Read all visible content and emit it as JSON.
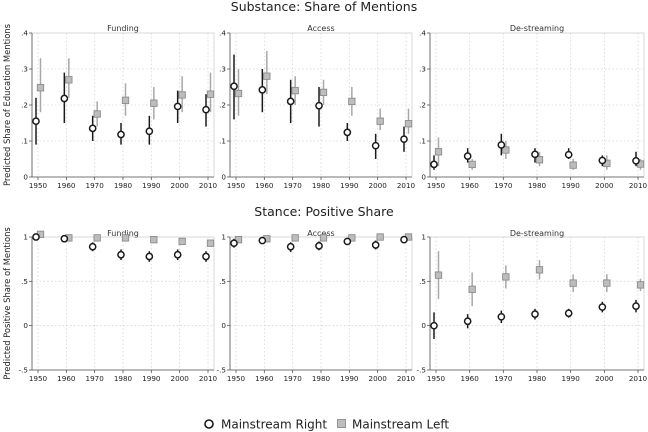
{
  "figure": {
    "section_titles": [
      "Substance: Share of Mentions",
      "Stance: Positive Share"
    ],
    "legend": [
      {
        "label": "Mainstream Right",
        "marker": "hollow-circle",
        "color": "#1a1a1a"
      },
      {
        "label": "Mainstream Left",
        "marker": "gray-square",
        "color": "#bdbdbd"
      }
    ]
  },
  "chart_data": [
    {
      "type": "scatter",
      "title": "Funding",
      "section": "Substance: Share of Mentions",
      "ylabel": "Predicted Share of Education Mentions",
      "x": [
        1950,
        1960,
        1970,
        1980,
        1990,
        2000,
        2010
      ],
      "xticks": [
        "1950",
        "1960",
        "1970",
        "1980",
        "1990",
        "2000",
        "2010"
      ],
      "ylim": [
        0,
        0.4
      ],
      "yticks": [
        0,
        0.1,
        0.2,
        0.3,
        0.4
      ],
      "ytick_labels": [
        "0",
        ".1",
        ".2",
        ".3",
        ".4"
      ],
      "grid": true,
      "series": [
        {
          "name": "Mainstream Right",
          "values": [
            0.155,
            0.218,
            0.135,
            0.118,
            0.127,
            0.196,
            0.187
          ],
          "lower": [
            0.09,
            0.15,
            0.1,
            0.09,
            0.09,
            0.15,
            0.14
          ],
          "upper": [
            0.22,
            0.29,
            0.17,
            0.15,
            0.17,
            0.24,
            0.23
          ]
        },
        {
          "name": "Mainstream Left",
          "values": [
            0.248,
            0.27,
            0.175,
            0.213,
            0.205,
            0.228,
            0.23
          ],
          "lower": [
            0.18,
            0.22,
            0.14,
            0.17,
            0.16,
            0.18,
            0.18
          ],
          "upper": [
            0.33,
            0.33,
            0.21,
            0.26,
            0.25,
            0.28,
            0.29
          ]
        }
      ]
    },
    {
      "type": "scatter",
      "title": "Access",
      "section": "Substance: Share of Mentions",
      "ylabel": "",
      "x": [
        1950,
        1960,
        1970,
        1980,
        1990,
        2000,
        2010
      ],
      "xticks": [
        "1950",
        "1960",
        "1970",
        "1980",
        "1990",
        "2000",
        "2010"
      ],
      "ylim": [
        0,
        0.4
      ],
      "yticks": [
        0,
        0.1,
        0.2,
        0.3,
        0.4
      ],
      "ytick_labels": [
        "0",
        ".1",
        ".2",
        ".3",
        ".4"
      ],
      "grid": true,
      "series": [
        {
          "name": "Mainstream Right",
          "values": [
            0.252,
            0.242,
            0.21,
            0.198,
            0.124,
            0.087,
            0.105
          ],
          "lower": [
            0.16,
            0.18,
            0.15,
            0.14,
            0.1,
            0.05,
            0.07
          ],
          "upper": [
            0.34,
            0.3,
            0.27,
            0.25,
            0.15,
            0.12,
            0.14
          ]
        },
        {
          "name": "Mainstream Left",
          "values": [
            0.232,
            0.28,
            0.24,
            0.235,
            0.21,
            0.155,
            0.148
          ],
          "lower": [
            0.17,
            0.23,
            0.2,
            0.2,
            0.17,
            0.13,
            0.12
          ],
          "upper": [
            0.3,
            0.35,
            0.28,
            0.27,
            0.25,
            0.19,
            0.19
          ]
        }
      ]
    },
    {
      "type": "scatter",
      "title": "De-streaming",
      "section": "Substance: Share of Mentions",
      "ylabel": "",
      "x": [
        1950,
        1960,
        1970,
        1980,
        1990,
        2000,
        2010
      ],
      "xticks": [
        "1950",
        "1960",
        "1970",
        "1980",
        "1990",
        "2000",
        "2010"
      ],
      "ylim": [
        0,
        0.4
      ],
      "yticks": [
        0,
        0.1,
        0.2,
        0.3,
        0.4
      ],
      "ytick_labels": [
        "0",
        ".1",
        ".2",
        ".3",
        ".4"
      ],
      "grid": true,
      "series": [
        {
          "name": "Mainstream Right",
          "values": [
            0.035,
            0.058,
            0.089,
            0.063,
            0.062,
            0.046,
            0.045
          ],
          "lower": [
            0.02,
            0.04,
            0.06,
            0.04,
            0.05,
            0.03,
            0.03
          ],
          "upper": [
            0.06,
            0.08,
            0.12,
            0.08,
            0.08,
            0.06,
            0.07
          ]
        },
        {
          "name": "Mainstream Left",
          "values": [
            0.07,
            0.035,
            0.075,
            0.048,
            0.033,
            0.038,
            0.036
          ],
          "lower": [
            0.03,
            0.02,
            0.05,
            0.03,
            0.02,
            0.02,
            0.02
          ],
          "upper": [
            0.11,
            0.05,
            0.1,
            0.07,
            0.05,
            0.06,
            0.05
          ]
        }
      ]
    },
    {
      "type": "scatter",
      "title": "Funding",
      "section": "Stance: Positive Share",
      "ylabel": "Predicted Positive Share of Mentions",
      "x": [
        1950,
        1960,
        1970,
        1980,
        1990,
        2000,
        2010
      ],
      "xticks": [
        "1950",
        "1960",
        "1970",
        "1980",
        "1990",
        "2000",
        "2010"
      ],
      "ylim": [
        -0.5,
        1
      ],
      "yticks": [
        -0.5,
        0,
        0.5,
        1
      ],
      "ytick_labels": [
        "-.5",
        "0",
        ".5",
        "1"
      ],
      "grid": true,
      "series": [
        {
          "name": "Mainstream Right",
          "values": [
            1.0,
            0.98,
            0.89,
            0.8,
            0.78,
            0.8,
            0.78
          ],
          "lower": [
            0.98,
            0.95,
            0.84,
            0.74,
            0.72,
            0.74,
            0.72
          ],
          "upper": [
            1.02,
            1.0,
            0.94,
            0.86,
            0.84,
            0.86,
            0.84
          ]
        },
        {
          "name": "Mainstream Left",
          "values": [
            1.03,
            0.99,
            0.99,
            0.99,
            0.97,
            0.95,
            0.93
          ],
          "lower": [
            1.0,
            0.97,
            0.97,
            0.97,
            0.95,
            0.93,
            0.91
          ],
          "upper": [
            1.05,
            1.01,
            1.01,
            1.01,
            0.99,
            0.97,
            0.95
          ]
        }
      ]
    },
    {
      "type": "scatter",
      "title": "Access",
      "section": "Stance: Positive Share",
      "ylabel": "",
      "x": [
        1950,
        1960,
        1970,
        1980,
        1990,
        2000,
        2010
      ],
      "xticks": [
        "1950",
        "1960",
        "1970",
        "1980",
        "1990",
        "2000",
        "2010"
      ],
      "ylim": [
        -0.5,
        1
      ],
      "yticks": [
        -0.5,
        0,
        0.5,
        1
      ],
      "ytick_labels": [
        "-.5",
        "0",
        ".5",
        "1"
      ],
      "grid": true,
      "series": [
        {
          "name": "Mainstream Right",
          "values": [
            0.93,
            0.96,
            0.89,
            0.9,
            0.95,
            0.91,
            0.97
          ],
          "lower": [
            0.88,
            0.94,
            0.83,
            0.85,
            0.93,
            0.86,
            0.94
          ],
          "upper": [
            0.98,
            0.98,
            0.94,
            0.95,
            0.97,
            0.96,
            1.0
          ]
        },
        {
          "name": "Mainstream Left",
          "values": [
            0.97,
            0.98,
            0.99,
            0.99,
            0.99,
            1.0,
            1.0
          ],
          "lower": [
            0.95,
            0.96,
            0.97,
            0.97,
            0.97,
            0.98,
            0.98
          ],
          "upper": [
            0.99,
            1.0,
            1.01,
            1.01,
            1.01,
            1.02,
            1.02
          ]
        }
      ]
    },
    {
      "type": "scatter",
      "title": "De-streaming",
      "section": "Stance: Positive Share",
      "ylabel": "",
      "x": [
        1950,
        1960,
        1970,
        1980,
        1990,
        2000,
        2010
      ],
      "xticks": [
        "1950",
        "1960",
        "1970",
        "1980",
        "1990",
        "2000",
        "2010"
      ],
      "ylim": [
        -0.5,
        1
      ],
      "yticks": [
        -0.5,
        0,
        0.5,
        1
      ],
      "ytick_labels": [
        "-.5",
        "0",
        ".5",
        "1"
      ],
      "grid": true,
      "series": [
        {
          "name": "Mainstream Right",
          "values": [
            0.0,
            0.05,
            0.1,
            0.13,
            0.14,
            0.21,
            0.22
          ],
          "lower": [
            -0.15,
            -0.03,
            0.03,
            0.07,
            0.09,
            0.15,
            0.15
          ],
          "upper": [
            0.15,
            0.13,
            0.17,
            0.19,
            0.19,
            0.27,
            0.29
          ]
        },
        {
          "name": "Mainstream Left",
          "values": [
            0.57,
            0.41,
            0.55,
            0.63,
            0.48,
            0.48,
            0.46
          ],
          "lower": [
            0.3,
            0.22,
            0.42,
            0.52,
            0.38,
            0.38,
            0.39
          ],
          "upper": [
            0.84,
            0.6,
            0.68,
            0.74,
            0.58,
            0.58,
            0.53
          ]
        }
      ]
    }
  ]
}
